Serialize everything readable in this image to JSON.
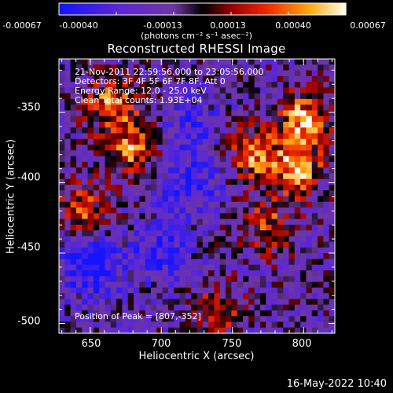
{
  "colorbar": {
    "tick_labels": [
      "-0.00067",
      "-0.00040",
      "-0.00013",
      "0.00013",
      "0.00040",
      "0.00067"
    ],
    "units_label": "(photons cm⁻² s⁻¹ asec⁻²)"
  },
  "annotations": {
    "time": "21-Nov-2011 22:59:56.000 to 23:05:56.000",
    "detectors": "Detectors: 3F 4F 5F 6F 7F 8F, Att 0",
    "energy": "Energy Range: 12.0 - 25.0 keV",
    "clean": "Clean    Total counts: 1.93E+04",
    "peak": "Position of Peak = [807,-352]"
  },
  "footer": {
    "timestamp": "16-May-2022 10:40"
  },
  "chart_data": {
    "type": "heatmap",
    "title": "Reconstructed RHESSI Image",
    "xlabel": "Heliocentric X (arcsec)",
    "ylabel": "Heliocentric Y (arcsec)",
    "xlim": [
      628,
      822
    ],
    "ylim": [
      -507,
      -312
    ],
    "x_ticks": [
      "650",
      "700",
      "750",
      "800"
    ],
    "y_ticks": [
      "-350",
      "-400",
      "-450",
      "-500"
    ],
    "x_tick_values": [
      650,
      700,
      750,
      800
    ],
    "y_tick_values": [
      -350,
      -400,
      -450,
      -500
    ],
    "value_range": [
      -0.00067,
      0.00067
    ],
    "colormap": "RHESSI signed: blue-purple (negative) to black to red-yellow-white (positive)",
    "peak_position": [
      807,
      -352
    ],
    "bright_regions": [
      {
        "x": 680,
        "y": -375,
        "relative_intensity": 0.85
      },
      {
        "x": 665,
        "y": -345,
        "relative_intensity": 0.8
      },
      {
        "x": 645,
        "y": -420,
        "relative_intensity": 0.7
      },
      {
        "x": 800,
        "y": -355,
        "relative_intensity": 1.0
      },
      {
        "x": 795,
        "y": -390,
        "relative_intensity": 0.95
      },
      {
        "x": 765,
        "y": -380,
        "relative_intensity": 0.8
      },
      {
        "x": 775,
        "y": -430,
        "relative_intensity": 0.6
      },
      {
        "x": 740,
        "y": -490,
        "relative_intensity": 0.5
      }
    ],
    "dark_regions": [
      {
        "x": 720,
        "y": -400,
        "relative_intensity": -0.6
      },
      {
        "x": 650,
        "y": -460,
        "relative_intensity": -0.7
      },
      {
        "x": 700,
        "y": -450,
        "relative_intensity": -0.5
      },
      {
        "x": 720,
        "y": -360,
        "relative_intensity": -0.4
      }
    ]
  }
}
